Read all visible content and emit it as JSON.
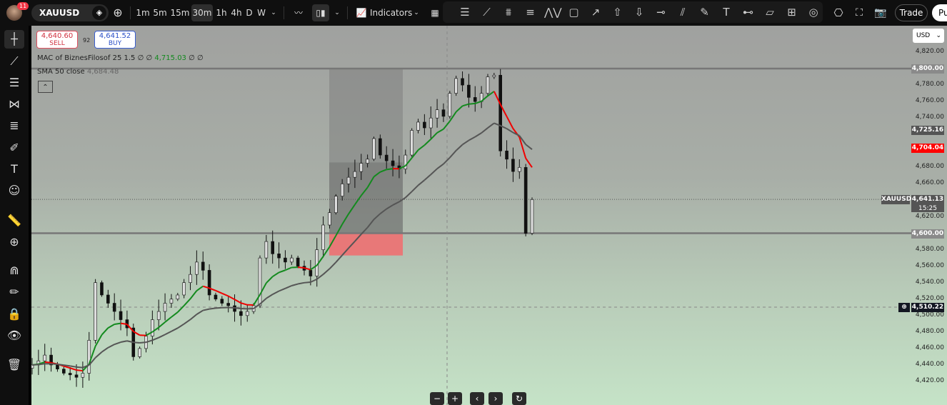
{
  "topbar": {
    "notifications": "11",
    "symbol": "XAUUSD",
    "timeframes": [
      "1m",
      "5m",
      "15m",
      "30m",
      "1h",
      "4h",
      "D",
      "W"
    ],
    "selected_timeframe": "30m",
    "indicators_label": "Indicators",
    "trade_label": "Trade",
    "publish_label": "Pu"
  },
  "drawing_tools": [
    "tool-lines",
    "trend-line",
    "parallel-channel",
    "pitchfork",
    "zigzag",
    "rectangle",
    "arrow-marker",
    "arrow-up",
    "arrow-down",
    "horizontal-ray",
    "trend-angle",
    "brush",
    "text",
    "horizontal-line",
    "fib-channel",
    "long-position",
    "circle"
  ],
  "left_tools": [
    "crosshair",
    "trend-line",
    "horizontal-lines",
    "pattern",
    "fib",
    "brush",
    "text",
    "emoji",
    "ruler",
    "zoom",
    "magnet",
    "lock-drawings",
    "lock",
    "eye",
    "trash"
  ],
  "chart": {
    "sell_price": "4,640.60",
    "sell_label": "SELL",
    "spread": "92",
    "buy_price": "4,641.52",
    "buy_label": "BUY",
    "indicator1": {
      "name": "MAC of BiznesFilosof 25 1.5",
      "values": "∅ ∅",
      "value": "4,715.03",
      "tail": "∅ ∅"
    },
    "indicator2": {
      "name": "SMA 50 close",
      "value": "4,684.48"
    },
    "currency": "USD",
    "colors": {
      "up_ma": "#138a1e",
      "down_ma": "#f00000",
      "sma": "#555555",
      "candle": "#111111",
      "stop_zone": "#e87878"
    }
  },
  "price_axis": {
    "ticks": [
      "4,820.00",
      "4,780.00",
      "4,760.00",
      "4,740.00",
      "4,680.00",
      "4,660.00",
      "4,620.00",
      "4,580.00",
      "4,560.00",
      "4,540.00",
      "4,520.00",
      "4,500.00",
      "4,480.00",
      "4,460.00",
      "4,440.00",
      "4,420.00"
    ],
    "tags": {
      "level_high": "4,800.00",
      "sma": "4,725.16",
      "mac": "4,704.04",
      "last_symbol": "XAUUSD",
      "last": "4,641.13",
      "countdown": "15:25",
      "level_low": "4,600.00",
      "crosshair": "4,510.22"
    }
  },
  "chart_data": {
    "type": "candlestick",
    "ylim": [
      4410,
      4830
    ],
    "horizontal_levels": [
      4800,
      4600
    ],
    "position_box": {
      "target": 4800,
      "entry_mid": 4686,
      "entry": 4600,
      "stop": 4573
    },
    "closes": [
      4440,
      4445,
      4452,
      4440,
      4435,
      4430,
      4428,
      4425,
      4430,
      4470,
      4540,
      4525,
      4515,
      4505,
      4495,
      4485,
      4450,
      4460,
      4475,
      4495,
      4505,
      4515,
      4520,
      4525,
      4540,
      4550,
      4565,
      4555,
      4525,
      4520,
      4515,
      4512,
      4505,
      4500,
      4505,
      4512,
      4570,
      4590,
      4575,
      4570,
      4565,
      4570,
      4560,
      4555,
      4548,
      4580,
      4610,
      4625,
      4645,
      4660,
      4668,
      4675,
      4685,
      4690,
      4715,
      4695,
      4688,
      4682,
      4678,
      4695,
      4725,
      4735,
      4728,
      4740,
      4750,
      4742,
      4770,
      4788,
      4780,
      4765,
      4760,
      4770,
      4790,
      4792,
      4700,
      4690,
      4675,
      4680,
      4600,
      4641
    ]
  }
}
